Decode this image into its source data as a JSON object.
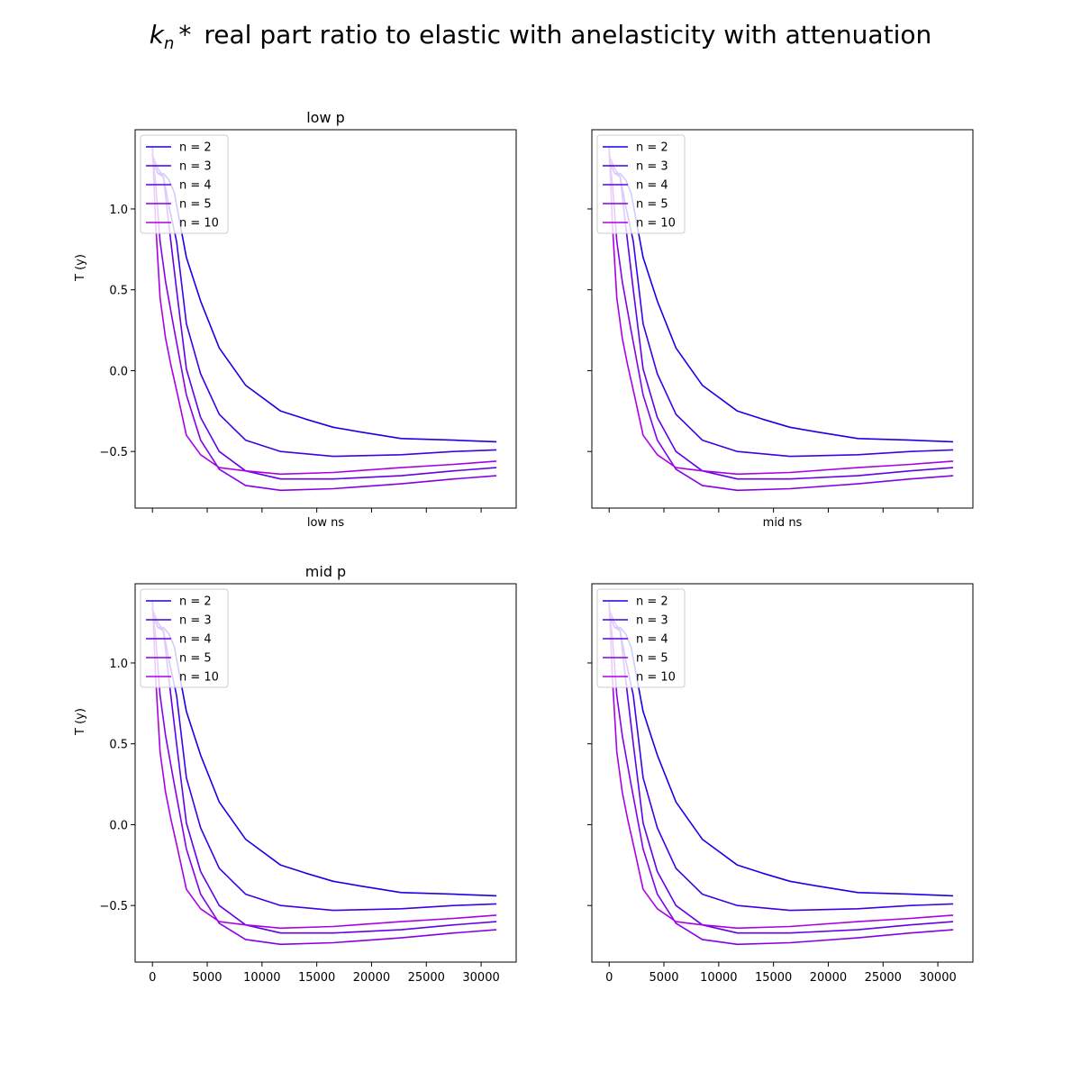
{
  "figure": {
    "title_main": "real part ratio to elastic with anelasticity with attenuation",
    "title_symbol": "k",
    "title_subscript": "n",
    "title_suffix": "*"
  },
  "chart_data": [
    {
      "type": "line",
      "title": "low p",
      "xlabel": "low ns",
      "ylabel": "T (y)",
      "xlim": [
        -1580,
        33200
      ],
      "ylim": [
        -0.85,
        1.49
      ],
      "show_xticklabels": false,
      "show_yticklabels": true,
      "grid": false,
      "legend_position": "upper-left"
    },
    {
      "type": "line",
      "title": "",
      "xlabel": "mid ns",
      "ylabel": "",
      "xlim": [
        -1580,
        33200
      ],
      "ylim": [
        -0.85,
        1.49
      ],
      "show_xticklabels": false,
      "show_yticklabels": false,
      "grid": false,
      "legend_position": "upper-left"
    },
    {
      "type": "line",
      "title": "mid p",
      "xlabel": "",
      "ylabel": "T (y)",
      "xlim": [
        -1580,
        33200
      ],
      "ylim": [
        -0.85,
        1.49
      ],
      "show_xticklabels": true,
      "show_yticklabels": true,
      "grid": false,
      "legend_position": "upper-left"
    },
    {
      "type": "line",
      "title": "",
      "xlabel": "",
      "ylabel": "",
      "xlim": [
        -1580,
        33200
      ],
      "ylim": [
        -0.85,
        1.49
      ],
      "show_xticklabels": true,
      "show_yticklabels": false,
      "grid": false,
      "legend_position": "upper-left"
    }
  ],
  "shared": {
    "xticks": [
      0,
      5000,
      10000,
      15000,
      20000,
      25000,
      30000
    ],
    "yticks": [
      -0.5,
      0.0,
      0.5,
      1.0
    ],
    "ytick_labels": [
      "−0.5",
      "0.0",
      "0.5",
      "1.0"
    ],
    "series": [
      {
        "name": "n = 2",
        "color": "#1a00e6",
        "points": [
          [
            0,
            1.3
          ],
          [
            500,
            1.22
          ],
          [
            1000,
            1.22
          ],
          [
            1500,
            1.18
          ],
          [
            2000,
            1.1
          ],
          [
            3100,
            0.7
          ],
          [
            4400,
            0.43
          ],
          [
            6100,
            0.14
          ],
          [
            8500,
            -0.09
          ],
          [
            11700,
            -0.25
          ],
          [
            14000,
            -0.3
          ],
          [
            16500,
            -0.35
          ],
          [
            19000,
            -0.38
          ],
          [
            22700,
            -0.42
          ],
          [
            27500,
            -0.43
          ],
          [
            31400,
            -0.44
          ]
        ]
      },
      {
        "name": "n = 3",
        "color": "#3e00e6",
        "points": [
          [
            0,
            1.3
          ],
          [
            500,
            1.22
          ],
          [
            1000,
            1.2
          ],
          [
            1500,
            1.02
          ],
          [
            2200,
            0.8
          ],
          [
            3100,
            0.29
          ],
          [
            4400,
            -0.02
          ],
          [
            6100,
            -0.27
          ],
          [
            8500,
            -0.43
          ],
          [
            11700,
            -0.5
          ],
          [
            16500,
            -0.53
          ],
          [
            22700,
            -0.52
          ],
          [
            27500,
            -0.5
          ],
          [
            31400,
            -0.49
          ]
        ]
      },
      {
        "name": "n = 4",
        "color": "#6200e6",
        "points": [
          [
            0,
            1.33
          ],
          [
            500,
            1.25
          ],
          [
            1000,
            1.2
          ],
          [
            1500,
            0.9
          ],
          [
            2200,
            0.5
          ],
          [
            3100,
            0.01
          ],
          [
            4400,
            -0.29
          ],
          [
            6100,
            -0.5
          ],
          [
            8500,
            -0.62
          ],
          [
            11700,
            -0.67
          ],
          [
            16500,
            -0.67
          ],
          [
            22700,
            -0.65
          ],
          [
            27500,
            -0.62
          ],
          [
            31400,
            -0.6
          ]
        ]
      },
      {
        "name": "n = 5",
        "color": "#8600e6",
        "points": [
          [
            0,
            1.34
          ],
          [
            300,
            1.15
          ],
          [
            700,
            0.8
          ],
          [
            1200,
            0.55
          ],
          [
            2000,
            0.25
          ],
          [
            3100,
            -0.15
          ],
          [
            4400,
            -0.43
          ],
          [
            6100,
            -0.61
          ],
          [
            8500,
            -0.71
          ],
          [
            11700,
            -0.74
          ],
          [
            16500,
            -0.73
          ],
          [
            22700,
            -0.7
          ],
          [
            27500,
            -0.67
          ],
          [
            31400,
            -0.65
          ]
        ]
      },
      {
        "name": "n = 10",
        "color": "#aa00e6",
        "points": [
          [
            0,
            1.38
          ],
          [
            300,
            0.9
          ],
          [
            700,
            0.45
          ],
          [
            1200,
            0.2
          ],
          [
            1700,
            0.03
          ],
          [
            2300,
            -0.15
          ],
          [
            3100,
            -0.4
          ],
          [
            4400,
            -0.52
          ],
          [
            6100,
            -0.6
          ],
          [
            8500,
            -0.62
          ],
          [
            11700,
            -0.64
          ],
          [
            16500,
            -0.63
          ],
          [
            22700,
            -0.6
          ],
          [
            27500,
            -0.58
          ],
          [
            31400,
            -0.56
          ]
        ]
      }
    ]
  }
}
